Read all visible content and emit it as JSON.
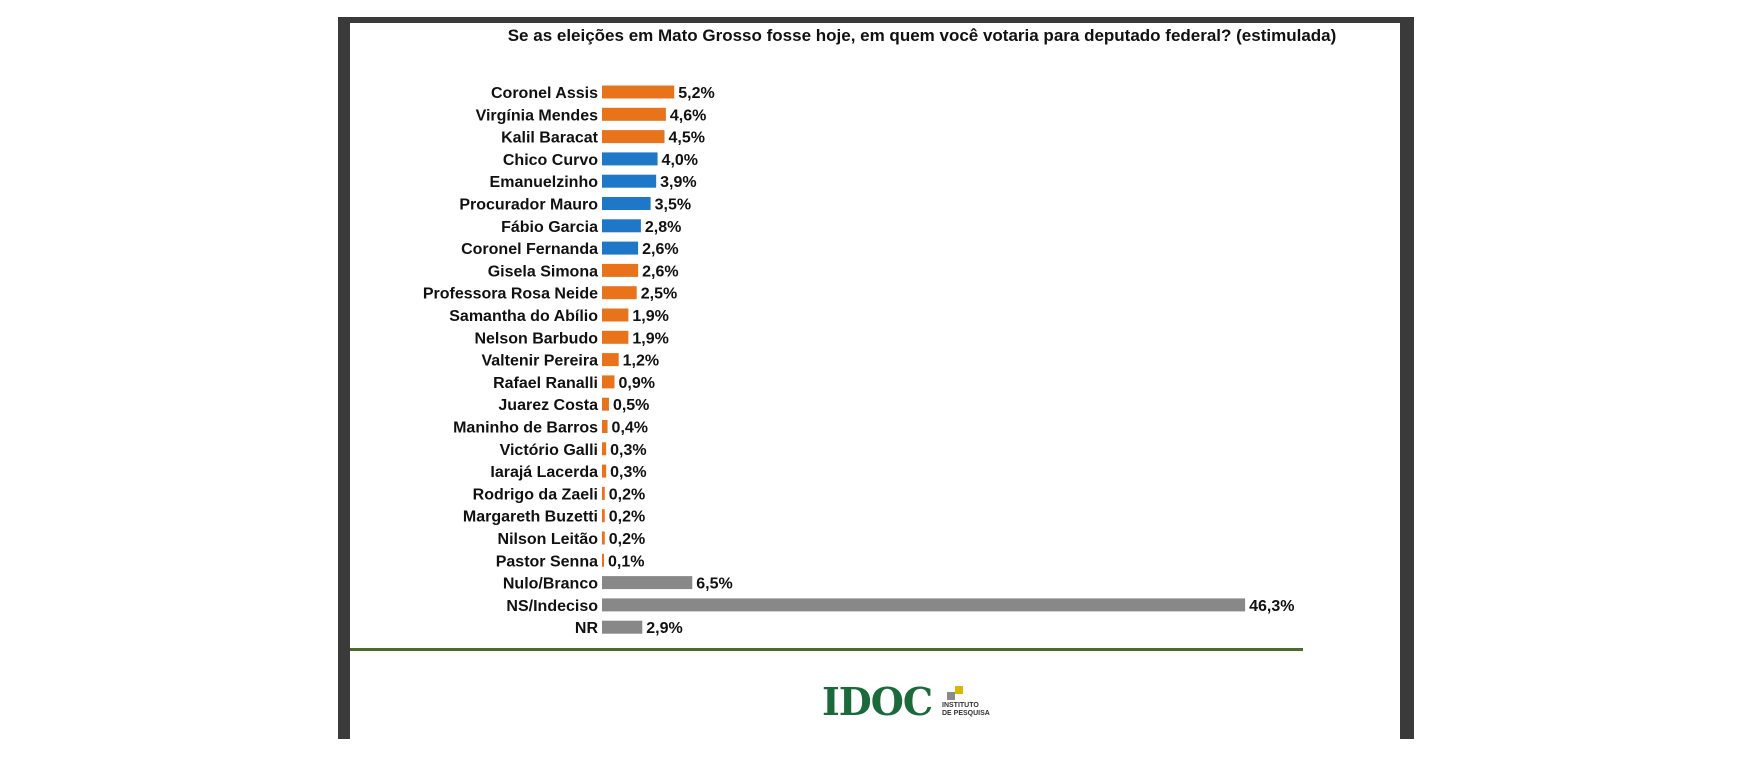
{
  "chart_data": {
    "type": "bar",
    "orientation": "horizontal",
    "title": "Se as eleições em Mato Grosso fosse hoje, em quem você votaria para deputado federal? (estimulada)",
    "categories": [
      "Coronel Assis",
      "Virgínia Mendes",
      "Kalil Baracat",
      "Chico Curvo",
      "Emanuelzinho",
      "Procurador Mauro",
      "Fábio Garcia",
      "Coronel Fernanda",
      "Gisela Simona",
      "Professora Rosa Neide",
      "Samantha do Abílio",
      "Nelson Barbudo",
      "Valtenir Pereira",
      "Rafael Ranalli",
      "Juarez Costa",
      "Maninho de Barros",
      "Victório Galli",
      "Iarajá Lacerda",
      "Rodrigo da Zaeli",
      "Margareth Buzetti",
      "Nilson Leitão",
      "Pastor Senna",
      "Nulo/Branco",
      "NS/Indeciso",
      "NR"
    ],
    "values": [
      5.2,
      4.6,
      4.5,
      4.0,
      3.9,
      3.5,
      2.8,
      2.6,
      2.6,
      2.5,
      1.9,
      1.9,
      1.2,
      0.9,
      0.5,
      0.4,
      0.3,
      0.3,
      0.2,
      0.2,
      0.2,
      0.1,
      6.5,
      46.3,
      2.9
    ],
    "value_labels": [
      "5,2%",
      "4,6%",
      "4,5%",
      "4,0%",
      "3,9%",
      "3,5%",
      "2,8%",
      "2,6%",
      "2,6%",
      "2,5%",
      "1,9%",
      "1,9%",
      "1,2%",
      "0,9%",
      "0,5%",
      "0,4%",
      "0,3%",
      "0,3%",
      "0,2%",
      "0,2%",
      "0,2%",
      "0,1%",
      "6,5%",
      "46,3%",
      "2,9%"
    ],
    "bar_colors": [
      "#E8731A",
      "#E8731A",
      "#E8731A",
      "#1F77C8",
      "#1F77C8",
      "#1F77C8",
      "#1F77C8",
      "#1F77C8",
      "#E8731A",
      "#E8731A",
      "#E8731A",
      "#E8731A",
      "#E8731A",
      "#E8731A",
      "#E8731A",
      "#E8731A",
      "#E8731A",
      "#E8731A",
      "#E8731A",
      "#E8731A",
      "#E8731A",
      "#E8731A",
      "#888888",
      "#888888",
      "#888888"
    ],
    "grid": false
  },
  "logo": {
    "name": "IDOC",
    "subtitle_line1": "INSTITUTO",
    "subtitle_line2": "DE PESQUISA",
    "colors": {
      "text": "#1b6b3a",
      "mark_yellow": "#d9b800",
      "mark_gray": "#8a8a8a"
    }
  }
}
